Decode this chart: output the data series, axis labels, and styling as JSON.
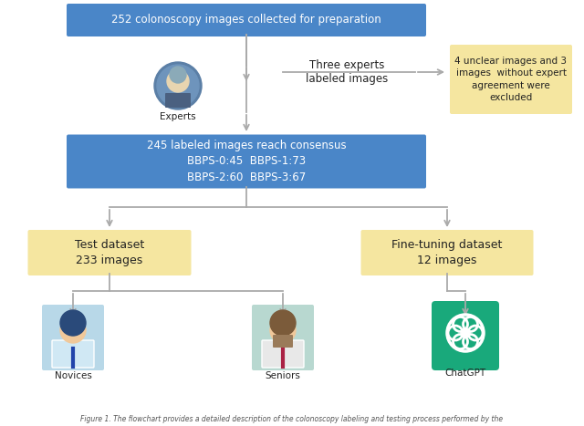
{
  "bg_color": "#ffffff",
  "blue_box_color": "#4A86C8",
  "yellow_box_color": "#F5E6A0",
  "text_color_white": "#ffffff",
  "text_color_dark": "#222222",
  "arrow_color": "#aaaaaa",
  "box1_text": "252 colonoscopy images collected for preparation",
  "box2_text": "245 labeled images reach consensus\nBBPS-0:45  BBPS-1:73\nBBPS-2:60  BBPS-3:67",
  "box3_text": "Test dataset\n233 images",
  "box4_text": "Fine-tuning dataset\n12 images",
  "box5_text": "4 unclear images and 3\nimages  without expert\nagreement were\nexcluded",
  "experts_label": "Experts",
  "three_experts_text": "Three experts\nlabeled images",
  "novices_label": "Novices",
  "seniors_label": "Seniors",
  "chatgpt_label": "ChatGPT",
  "caption": "Figure 1. The flowchart provides a detailed description of the colonoscopy labeling and testing process performed by the"
}
